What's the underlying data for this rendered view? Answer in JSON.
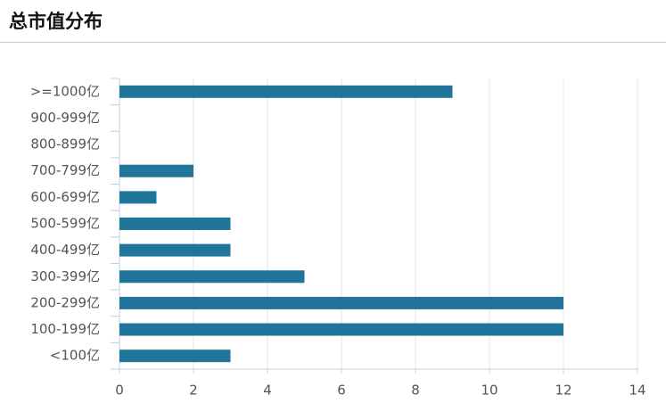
{
  "chart_data": {
    "type": "bar",
    "orientation": "horizontal",
    "title": "总市值分布",
    "categories": [
      ">=1000亿",
      "900-999亿",
      "800-899亿",
      "700-799亿",
      "600-699亿",
      "500-599亿",
      "400-499亿",
      "300-399亿",
      "200-299亿",
      "100-199亿",
      "<100亿"
    ],
    "values": [
      9,
      0,
      0,
      2,
      1,
      3,
      3,
      5,
      12,
      12,
      3
    ],
    "color": "#21759b",
    "xlim": [
      0,
      14
    ],
    "xticks": [
      0,
      2,
      4,
      6,
      8,
      10,
      12,
      14
    ],
    "grid": true
  }
}
